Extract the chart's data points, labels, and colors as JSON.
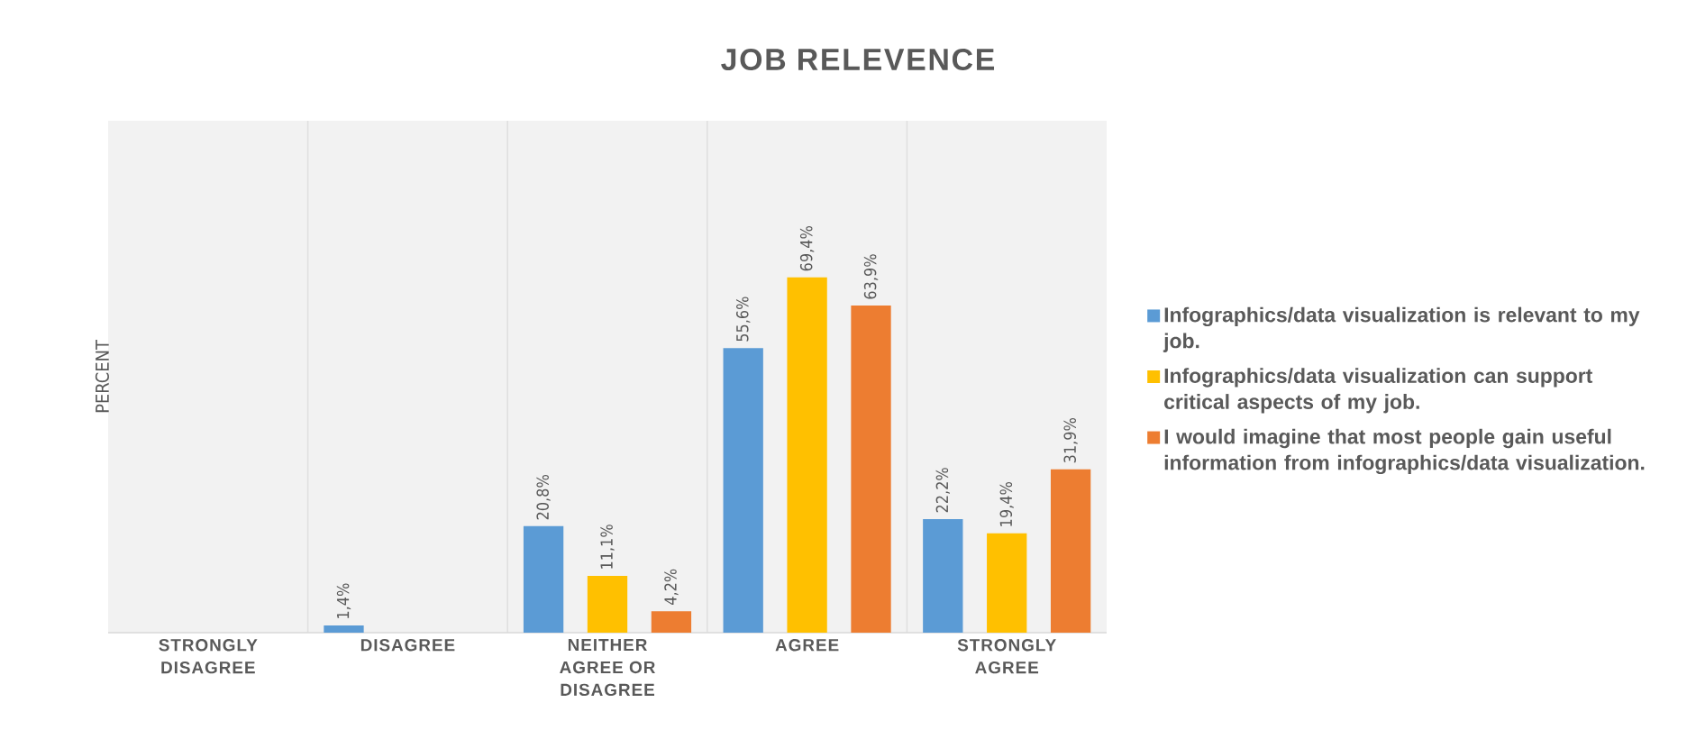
{
  "chart_data": {
    "type": "bar",
    "title": "JOB RELEVENCE",
    "ylabel": "PERCENT",
    "categories": [
      "STRONGLY DISAGREE",
      "DISAGREE",
      "NEITHER AGREE OR DISAGREE",
      "AGREE",
      "STRONGLY AGREE"
    ],
    "series": [
      {
        "name": "Infographics/data visualization is relevant to my job.",
        "color": "#5b9bd5",
        "values": [
          null,
          1.4,
          20.8,
          55.6,
          22.2
        ],
        "value_labels": [
          null,
          "1,4%",
          "20,8%",
          "55,6%",
          "22,2%"
        ]
      },
      {
        "name": "Infographics/data visualization can support critical aspects of my job.",
        "color": "#ffc000",
        "values": [
          null,
          null,
          11.1,
          69.4,
          19.4
        ],
        "value_labels": [
          null,
          null,
          "11,1%",
          "69,4%",
          "19,4%"
        ]
      },
      {
        "name": "I would imagine that most people gain useful information from infographics/data visualization.",
        "color": "#ed7d31",
        "values": [
          null,
          null,
          4.2,
          63.9,
          31.9
        ],
        "value_labels": [
          null,
          null,
          "4,2%",
          "63,9%",
          "31,9%"
        ]
      }
    ],
    "ylim": [
      0,
      100
    ],
    "tick_labels": "x",
    "grid": "x",
    "legend": "right"
  }
}
